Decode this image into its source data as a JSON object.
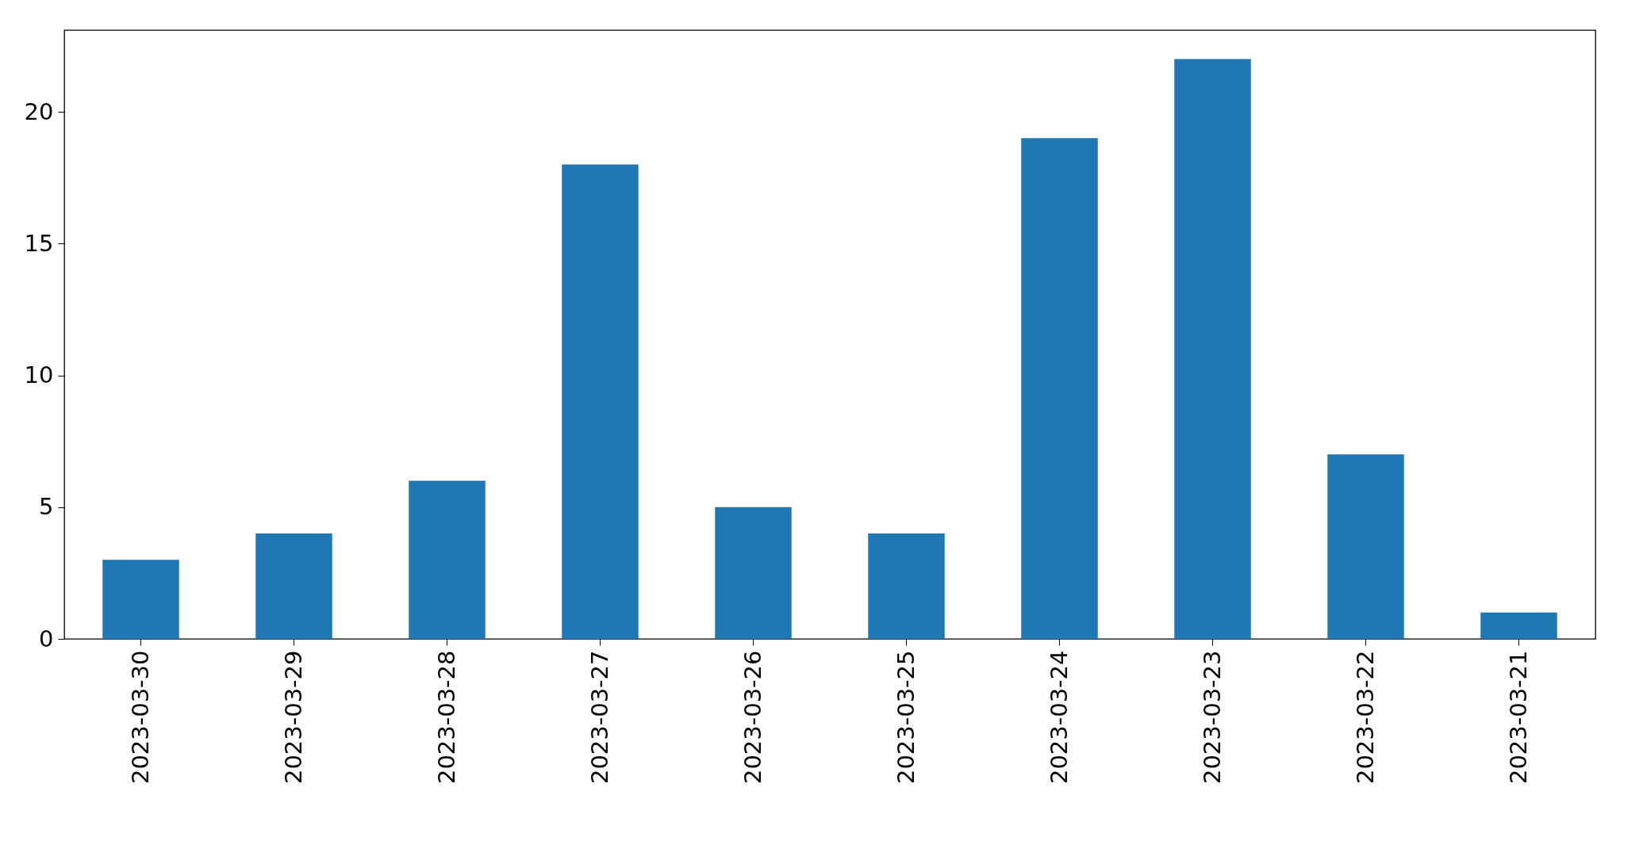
{
  "chart_data": {
    "type": "bar",
    "categories": [
      "2023-03-30",
      "2023-03-29",
      "2023-03-28",
      "2023-03-27",
      "2023-03-26",
      "2023-03-25",
      "2023-03-24",
      "2023-03-23",
      "2023-03-22",
      "2023-03-21"
    ],
    "values": [
      3,
      4,
      6,
      18,
      5,
      4,
      19,
      22,
      7,
      1
    ],
    "color": "#1f77b4",
    "ylim": [
      0,
      23.1
    ],
    "yticks": [
      0,
      5,
      10,
      15,
      20
    ],
    "grid": false
  }
}
